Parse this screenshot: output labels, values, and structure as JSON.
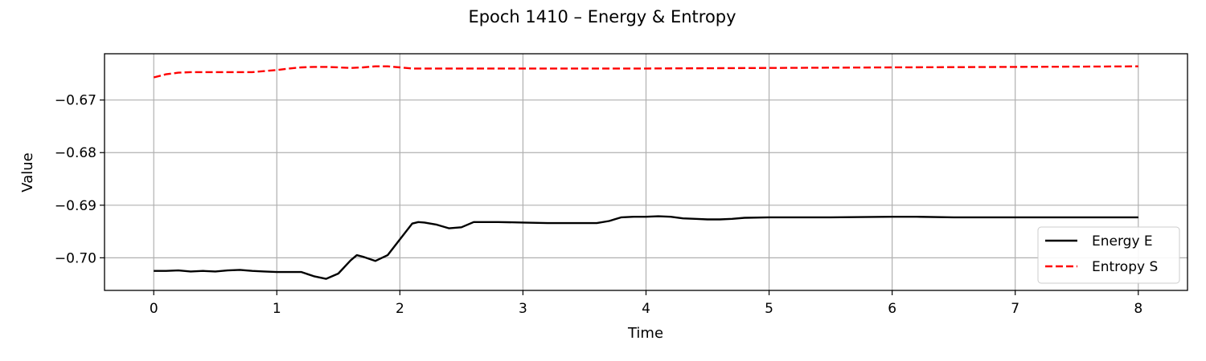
{
  "chart_data": {
    "type": "line",
    "title": "Epoch 1410 – Energy & Entropy",
    "xlabel": "Time",
    "ylabel": "Value",
    "xlim": [
      -0.4,
      8.4
    ],
    "ylim": [
      -0.7062,
      -0.6612
    ],
    "xticks": [
      0,
      1,
      2,
      3,
      4,
      5,
      6,
      7,
      8
    ],
    "xtick_labels": [
      "0",
      "1",
      "2",
      "3",
      "4",
      "5",
      "6",
      "7",
      "8"
    ],
    "yticks": [
      -0.7,
      -0.69,
      -0.68,
      -0.67
    ],
    "ytick_labels": [
      "−0.70",
      "−0.69",
      "−0.68",
      "−0.67"
    ],
    "grid": true,
    "legend_position": "lower-right",
    "series": [
      {
        "name": "Energy E",
        "color": "#000000",
        "style": "solid",
        "x": [
          0,
          0.1,
          0.2,
          0.3,
          0.4,
          0.5,
          0.6,
          0.7,
          0.8,
          0.9,
          1.0,
          1.1,
          1.2,
          1.3,
          1.4,
          1.5,
          1.6,
          1.65,
          1.7,
          1.8,
          1.9,
          2.0,
          2.1,
          2.15,
          2.2,
          2.3,
          2.4,
          2.5,
          2.6,
          2.7,
          2.8,
          3.0,
          3.2,
          3.4,
          3.6,
          3.7,
          3.8,
          3.9,
          4.0,
          4.1,
          4.2,
          4.3,
          4.4,
          4.5,
          4.6,
          4.7,
          4.8,
          5.0,
          5.5,
          6.0,
          6.2,
          6.5,
          7.0,
          7.5,
          8.0
        ],
        "values": [
          -0.7025,
          -0.7025,
          -0.7024,
          -0.7026,
          -0.7025,
          -0.7026,
          -0.7024,
          -0.7023,
          -0.7025,
          -0.7026,
          -0.7027,
          -0.7027,
          -0.7027,
          -0.7035,
          -0.704,
          -0.703,
          -0.7005,
          -0.6995,
          -0.6998,
          -0.7006,
          -0.6995,
          -0.6965,
          -0.6935,
          -0.6932,
          -0.6933,
          -0.6937,
          -0.6944,
          -0.6942,
          -0.6932,
          -0.6932,
          -0.6932,
          -0.6933,
          -0.6934,
          -0.6934,
          -0.6934,
          -0.693,
          -0.6923,
          -0.6922,
          -0.6922,
          -0.6921,
          -0.6922,
          -0.6925,
          -0.6926,
          -0.6927,
          -0.6927,
          -0.6926,
          -0.6924,
          -0.6923,
          -0.6923,
          -0.6922,
          -0.6922,
          -0.6923,
          -0.6923,
          -0.6923,
          -0.6923
        ]
      },
      {
        "name": "Entropy S",
        "color": "#ff0000",
        "style": "dashed",
        "x": [
          0,
          0.1,
          0.2,
          0.3,
          0.5,
          0.8,
          1.0,
          1.1,
          1.2,
          1.3,
          1.4,
          1.5,
          1.6,
          1.7,
          1.8,
          1.9,
          2.0,
          2.1,
          2.2,
          2.5,
          3.0,
          4.0,
          5.0,
          6.0,
          7.0,
          8.0
        ],
        "values": [
          -0.6657,
          -0.6651,
          -0.6648,
          -0.6647,
          -0.6647,
          -0.6647,
          -0.6643,
          -0.664,
          -0.6638,
          -0.6637,
          -0.6637,
          -0.6638,
          -0.6639,
          -0.6638,
          -0.6636,
          -0.6636,
          -0.6638,
          -0.664,
          -0.664,
          -0.664,
          -0.664,
          -0.664,
          -0.6639,
          -0.6638,
          -0.6637,
          -0.6636
        ]
      }
    ]
  }
}
